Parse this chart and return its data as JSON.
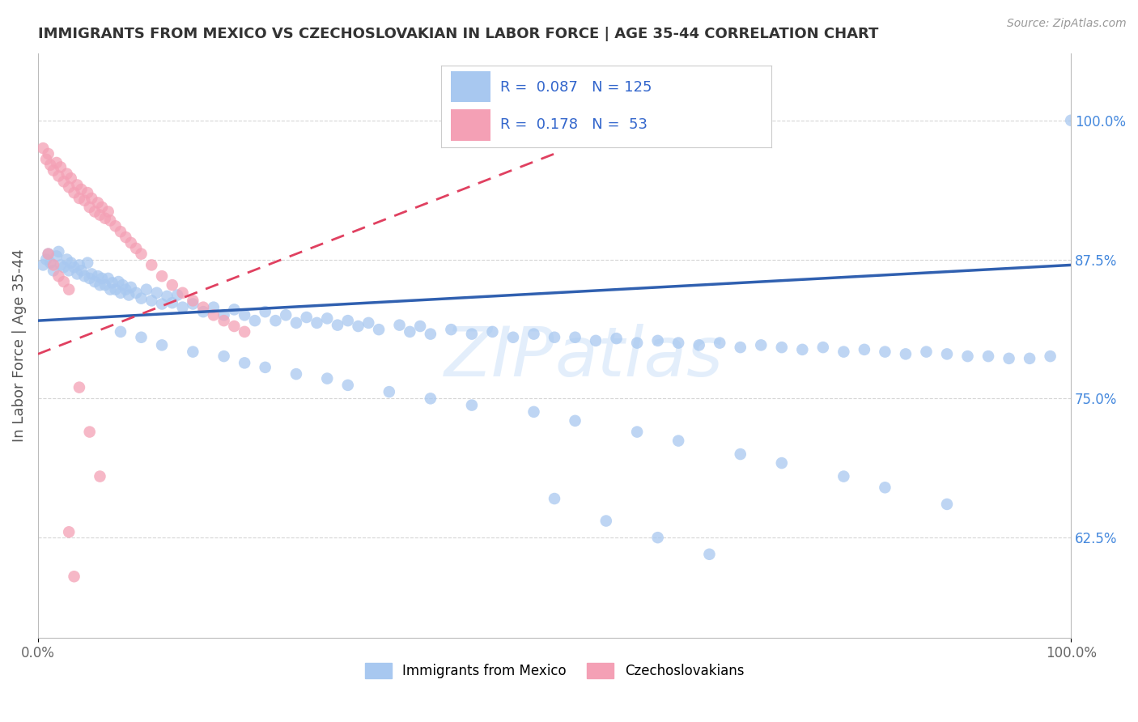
{
  "title": "IMMIGRANTS FROM MEXICO VS CZECHOSLOVAKIAN IN LABOR FORCE | AGE 35-44 CORRELATION CHART",
  "source": "Source: ZipAtlas.com",
  "ylabel": "In Labor Force | Age 35-44",
  "xlim": [
    0.0,
    1.0
  ],
  "ylim": [
    0.535,
    1.06
  ],
  "blue_color": "#a8c8f0",
  "pink_color": "#f4a0b5",
  "blue_line_color": "#3060b0",
  "pink_line_color": "#e04060",
  "grid_color": "#cccccc",
  "bg_color": "#ffffff",
  "watermark_color": "#c8dff8",
  "blue_scatter_x": [
    0.005,
    0.008,
    0.01,
    0.012,
    0.015,
    0.018,
    0.02,
    0.022,
    0.025,
    0.028,
    0.03,
    0.032,
    0.035,
    0.038,
    0.04,
    0.042,
    0.045,
    0.048,
    0.05,
    0.052,
    0.055,
    0.058,
    0.06,
    0.062,
    0.065,
    0.068,
    0.07,
    0.072,
    0.075,
    0.078,
    0.08,
    0.082,
    0.085,
    0.088,
    0.09,
    0.095,
    0.1,
    0.105,
    0.11,
    0.115,
    0.12,
    0.125,
    0.13,
    0.135,
    0.14,
    0.15,
    0.16,
    0.17,
    0.18,
    0.19,
    0.2,
    0.21,
    0.22,
    0.23,
    0.24,
    0.25,
    0.26,
    0.27,
    0.28,
    0.29,
    0.3,
    0.31,
    0.32,
    0.33,
    0.35,
    0.36,
    0.37,
    0.38,
    0.4,
    0.42,
    0.44,
    0.46,
    0.48,
    0.5,
    0.52,
    0.54,
    0.56,
    0.58,
    0.6,
    0.62,
    0.64,
    0.66,
    0.68,
    0.7,
    0.72,
    0.74,
    0.76,
    0.78,
    0.8,
    0.82,
    0.84,
    0.86,
    0.88,
    0.9,
    0.92,
    0.94,
    0.96,
    0.98,
    1.0,
    0.08,
    0.1,
    0.12,
    0.15,
    0.18,
    0.2,
    0.22,
    0.25,
    0.28,
    0.3,
    0.34,
    0.38,
    0.42,
    0.48,
    0.52,
    0.58,
    0.62,
    0.68,
    0.72,
    0.78,
    0.82,
    0.88,
    0.5,
    0.55,
    0.6,
    0.65
  ],
  "blue_scatter_y": [
    0.87,
    0.875,
    0.88,
    0.872,
    0.865,
    0.878,
    0.882,
    0.87,
    0.868,
    0.875,
    0.865,
    0.872,
    0.868,
    0.862,
    0.87,
    0.865,
    0.86,
    0.872,
    0.858,
    0.862,
    0.855,
    0.86,
    0.852,
    0.858,
    0.852,
    0.858,
    0.848,
    0.854,
    0.848,
    0.855,
    0.845,
    0.852,
    0.848,
    0.843,
    0.85,
    0.845,
    0.84,
    0.848,
    0.838,
    0.845,
    0.835,
    0.842,
    0.836,
    0.843,
    0.832,
    0.835,
    0.828,
    0.832,
    0.825,
    0.83,
    0.825,
    0.82,
    0.828,
    0.82,
    0.825,
    0.818,
    0.823,
    0.818,
    0.822,
    0.816,
    0.82,
    0.815,
    0.818,
    0.812,
    0.816,
    0.81,
    0.815,
    0.808,
    0.812,
    0.808,
    0.81,
    0.805,
    0.808,
    0.805,
    0.805,
    0.802,
    0.804,
    0.8,
    0.802,
    0.8,
    0.798,
    0.8,
    0.796,
    0.798,
    0.796,
    0.794,
    0.796,
    0.792,
    0.794,
    0.792,
    0.79,
    0.792,
    0.79,
    0.788,
    0.788,
    0.786,
    0.786,
    0.788,
    1.0,
    0.81,
    0.805,
    0.798,
    0.792,
    0.788,
    0.782,
    0.778,
    0.772,
    0.768,
    0.762,
    0.756,
    0.75,
    0.744,
    0.738,
    0.73,
    0.72,
    0.712,
    0.7,
    0.692,
    0.68,
    0.67,
    0.655,
    0.66,
    0.64,
    0.625,
    0.61
  ],
  "pink_scatter_x": [
    0.005,
    0.008,
    0.01,
    0.012,
    0.015,
    0.018,
    0.02,
    0.022,
    0.025,
    0.028,
    0.03,
    0.032,
    0.035,
    0.038,
    0.04,
    0.042,
    0.045,
    0.048,
    0.05,
    0.052,
    0.055,
    0.058,
    0.06,
    0.062,
    0.065,
    0.068,
    0.07,
    0.075,
    0.08,
    0.085,
    0.09,
    0.095,
    0.1,
    0.11,
    0.12,
    0.13,
    0.14,
    0.15,
    0.16,
    0.17,
    0.18,
    0.19,
    0.2,
    0.01,
    0.015,
    0.02,
    0.025,
    0.03,
    0.04,
    0.05,
    0.06,
    0.03,
    0.035
  ],
  "pink_scatter_y": [
    0.975,
    0.965,
    0.97,
    0.96,
    0.955,
    0.962,
    0.95,
    0.958,
    0.945,
    0.952,
    0.94,
    0.948,
    0.935,
    0.942,
    0.93,
    0.938,
    0.928,
    0.935,
    0.922,
    0.93,
    0.918,
    0.926,
    0.915,
    0.922,
    0.912,
    0.918,
    0.91,
    0.905,
    0.9,
    0.895,
    0.89,
    0.885,
    0.88,
    0.87,
    0.86,
    0.852,
    0.845,
    0.838,
    0.832,
    0.825,
    0.82,
    0.815,
    0.81,
    0.88,
    0.87,
    0.86,
    0.855,
    0.848,
    0.76,
    0.72,
    0.68,
    0.63,
    0.59
  ],
  "blue_line_x0": 0.0,
  "blue_line_x1": 1.0,
  "blue_line_y0": 0.82,
  "blue_line_y1": 0.87,
  "pink_line_x0": 0.0,
  "pink_line_x1": 0.5,
  "pink_line_y0": 0.79,
  "pink_line_y1": 0.97
}
